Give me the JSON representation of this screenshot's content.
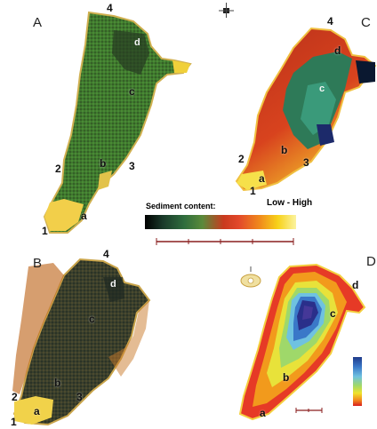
{
  "panels": {
    "A": {
      "letter": "A",
      "points": {
        "p4": "4",
        "d": "d",
        "c": "c",
        "p2": "2",
        "b": "b",
        "p3": "3",
        "a": "a",
        "p1": "1"
      }
    },
    "B": {
      "letter": "B",
      "points": {
        "p4": "4",
        "d": "d",
        "c": "c",
        "p2": "2",
        "b": "b",
        "p3": "3",
        "a": "a",
        "p1": "1"
      }
    },
    "C": {
      "letter": "C",
      "points": {
        "p4": "4",
        "d": "d",
        "c": "c",
        "p2": "2",
        "b": "b",
        "p3": "3",
        "a": "a",
        "p1": "1"
      }
    },
    "D": {
      "letter": "D",
      "points": {
        "d": "d",
        "c": "c",
        "b": "b",
        "a": "a"
      }
    }
  },
  "legend": {
    "title": "Sediment content:",
    "range": "Low - High",
    "colors": [
      "#000000",
      "#2f6d3d",
      "#c93a1e",
      "#f08a1c",
      "#f7d21a",
      "#fbf3a0"
    ]
  },
  "colors": {
    "green_low": "#3f7a2e",
    "dark_low": "#2d3d2a",
    "red_mid": "#c23a1c",
    "yellow_high": "#f4d23a",
    "deep_blue": "#2a2f8a"
  },
  "icons": {
    "north_arrow": "north-arrow-icon",
    "depth_marker": "depth-marker-icon"
  }
}
